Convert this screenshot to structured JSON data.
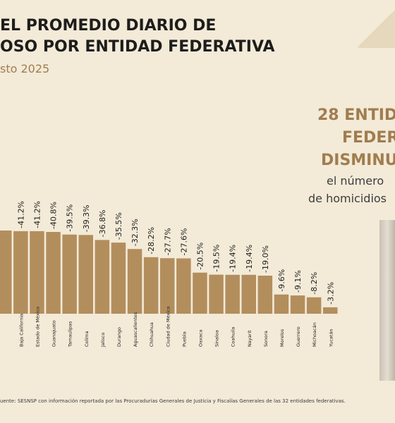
{
  "header": {
    "title_line1": "EL PROMEDIO DIARIO DE",
    "title_line2": "OSO POR ENTIDAD FEDERATIVA",
    "subtitle": "sto 2025"
  },
  "side_panel": {
    "line1": "28 ENTID",
    "line2": "FEDERAT",
    "line3": "DISMINUY",
    "sub1": "el número",
    "sub2": "de homicidios"
  },
  "footer": {
    "source": "uente: SESNSP con información reportada por las Procuradurías Generales de Justicia y Fiscalías Generales de las 32 entidades federativas."
  },
  "colors": {
    "bar": "#b38e5d",
    "label": "#1d1d1b",
    "accent": "#a07d4e",
    "background": "#f3ead8"
  },
  "chart_data": {
    "type": "bar",
    "categories": [
      "",
      "Baja California",
      "Estado de México",
      "Guanajuato",
      "Tamaulipas",
      "Colima",
      "Jalisco",
      "Durango",
      "Aguascalientes",
      "Chihuahua",
      "Ciudad de México",
      "Puebla",
      "Oaxaca",
      "Sinaloa",
      "Coahuila",
      "Nayarit",
      "Sonora",
      "Morelos",
      "Guerrero",
      "Michoacán",
      "Yucatán"
    ],
    "values": [
      -41.5,
      -41.2,
      -41.2,
      -40.8,
      -39.5,
      -39.3,
      -36.8,
      -35.5,
      -32.3,
      -28.2,
      -27.7,
      -27.6,
      -20.5,
      -19.5,
      -19.4,
      -19.4,
      -19.0,
      -9.6,
      -9.1,
      -8.2,
      -3.2
    ],
    "value_labels": [
      "",
      "-41.2%",
      "-41.2%",
      "-40.8%",
      "-39.5%",
      "-39.3%",
      "-36.8%",
      "-35.5%",
      "-32.3%",
      "-28.2%",
      "-27.7%",
      "-27.6%",
      "-20.5%",
      "-19.5%",
      "-19.4%",
      "-19.4%",
      "-19.0%",
      "-9.6%",
      "-9.1%",
      "-8.2%",
      "-3.2%"
    ],
    "title": "",
    "xlabel": "",
    "ylabel": "",
    "ylim": [
      0,
      -41.5
    ]
  }
}
